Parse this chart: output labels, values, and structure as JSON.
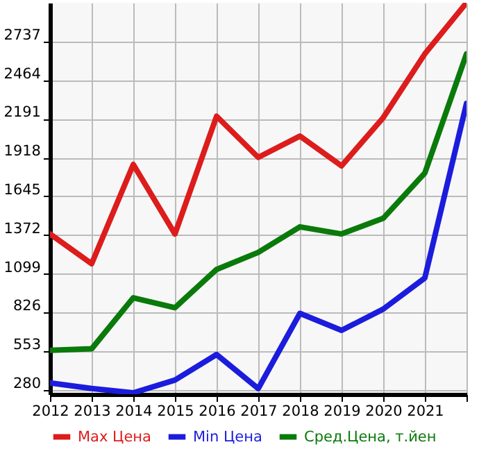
{
  "chart_data": {
    "type": "line",
    "x": [
      2012,
      2013,
      2014,
      2015,
      2016,
      2017,
      2018,
      2019,
      2020,
      2021,
      2022
    ],
    "xlim": [
      2012,
      2022
    ],
    "xticks": [
      2012,
      2013,
      2014,
      2015,
      2016,
      2017,
      2018,
      2019,
      2020,
      2021,
      {
        "value": 2022,
        "label": null
      }
    ],
    "ylim": [
      250,
      3010
    ],
    "yticks": [
      280,
      553,
      826,
      1099,
      1372,
      1645,
      1918,
      2191,
      2464,
      2737
    ],
    "grid": true,
    "legend": "bottom",
    "line_style": "solid",
    "series": [
      {
        "name": "Max Цена",
        "color": "#dd1c1c",
        "values": [
          1380,
          1170,
          1870,
          1380,
          2210,
          1920,
          2070,
          1860,
          2200,
          2650,
          3010
        ]
      },
      {
        "name": "Min Цена",
        "color": "#1c1cdd",
        "values": [
          330,
          290,
          260,
          350,
          530,
          290,
          820,
          700,
          850,
          1070,
          2300
        ]
      },
      {
        "name": "Сред.Цена, т.йен",
        "color": "#0a7a0a",
        "values": [
          560,
          570,
          930,
          860,
          1130,
          1250,
          1430,
          1380,
          1490,
          1810,
          2650
        ]
      }
    ]
  }
}
